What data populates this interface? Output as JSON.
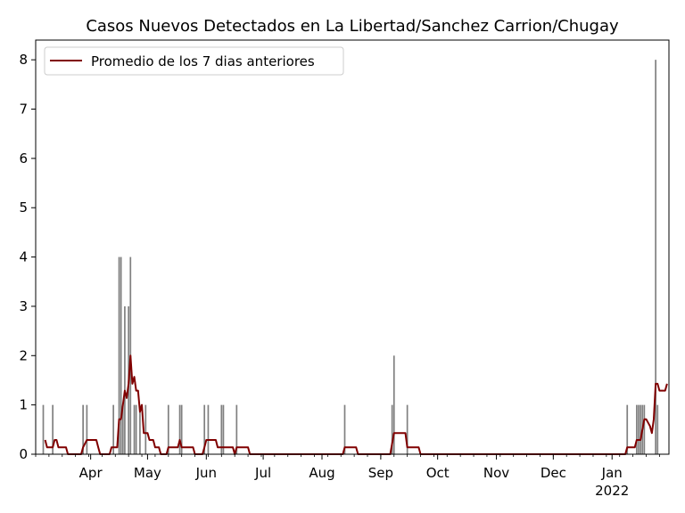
{
  "chart_data": {
    "type": "bar+line",
    "title": "Casos Nuevos Detectados en La Libertad/Sanchez Carrion/Chugay",
    "xlabel": "",
    "ylabel": "",
    "x_range": [
      "2021-03-03",
      "2022-01-31"
    ],
    "ylim": [
      0,
      8.4
    ],
    "y_ticks": [
      0,
      1,
      2,
      3,
      4,
      5,
      6,
      7,
      8
    ],
    "x_ticks": [
      {
        "date": "2021-04-01",
        "label": "Apr"
      },
      {
        "date": "2021-05-01",
        "label": "May"
      },
      {
        "date": "2021-06-01",
        "label": "Jun"
      },
      {
        "date": "2021-07-01",
        "label": "Jul"
      },
      {
        "date": "2021-08-01",
        "label": "Aug"
      },
      {
        "date": "2021-09-01",
        "label": "Sep"
      },
      {
        "date": "2021-10-01",
        "label": "Oct"
      },
      {
        "date": "2021-11-01",
        "label": "Nov"
      },
      {
        "date": "2021-12-01",
        "label": "Dec"
      },
      {
        "date": "2022-01-01",
        "label": "Jan",
        "sublabel": "2022"
      }
    ],
    "legend": {
      "placement": "upper-left",
      "entries": [
        "Promedio de los 7 dias anteriores"
      ]
    },
    "colors": {
      "bars": "#808080",
      "line": "#800000"
    },
    "series": [
      {
        "type": "bar",
        "values": [
          [
            "2021-03-07",
            1
          ],
          [
            "2021-03-12",
            1
          ],
          [
            "2021-03-28",
            1
          ],
          [
            "2021-03-30",
            1
          ],
          [
            "2021-04-13",
            1
          ],
          [
            "2021-04-16",
            4
          ],
          [
            "2021-04-17",
            4
          ],
          [
            "2021-04-18",
            1
          ],
          [
            "2021-04-19",
            3
          ],
          [
            "2021-04-21",
            3
          ],
          [
            "2021-04-22",
            4
          ],
          [
            "2021-04-24",
            1
          ],
          [
            "2021-04-25",
            1
          ],
          [
            "2021-04-27",
            1
          ],
          [
            "2021-04-30",
            1
          ],
          [
            "2021-05-12",
            1
          ],
          [
            "2021-05-18",
            1
          ],
          [
            "2021-05-19",
            1
          ],
          [
            "2021-05-31",
            1
          ],
          [
            "2021-06-02",
            1
          ],
          [
            "2021-06-09",
            1
          ],
          [
            "2021-06-10",
            1
          ],
          [
            "2021-06-17",
            1
          ],
          [
            "2021-08-13",
            1
          ],
          [
            "2021-09-07",
            1
          ],
          [
            "2021-09-08",
            2
          ],
          [
            "2021-09-15",
            1
          ],
          [
            "2022-01-09",
            1
          ],
          [
            "2022-01-14",
            1
          ],
          [
            "2022-01-15",
            1
          ],
          [
            "2022-01-16",
            1
          ],
          [
            "2022-01-17",
            1
          ],
          [
            "2022-01-18",
            1
          ],
          [
            "2022-01-24",
            8
          ],
          [
            "2022-01-25",
            1
          ]
        ]
      },
      {
        "type": "line",
        "name": "Promedio de los 7 dias anteriores",
        "values": [
          [
            "2021-03-08",
            0.29
          ],
          [
            "2021-03-09",
            0.14
          ],
          [
            "2021-03-12",
            0.14
          ],
          [
            "2021-03-13",
            0.29
          ],
          [
            "2021-03-14",
            0.29
          ],
          [
            "2021-03-15",
            0.14
          ],
          [
            "2021-03-19",
            0.14
          ],
          [
            "2021-03-20",
            0
          ],
          [
            "2021-03-27",
            0
          ],
          [
            "2021-03-28",
            0.14
          ],
          [
            "2021-03-30",
            0.29
          ],
          [
            "2021-04-04",
            0.29
          ],
          [
            "2021-04-05",
            0.14
          ],
          [
            "2021-04-06",
            0
          ],
          [
            "2021-04-11",
            0
          ],
          [
            "2021-04-12",
            0.14
          ],
          [
            "2021-04-15",
            0.14
          ],
          [
            "2021-04-16",
            0.71
          ],
          [
            "2021-04-17",
            0.71
          ],
          [
            "2021-04-18",
            1.0
          ],
          [
            "2021-04-19",
            1.29
          ],
          [
            "2021-04-20",
            1.14
          ],
          [
            "2021-04-21",
            1.43
          ],
          [
            "2021-04-22",
            2.0
          ],
          [
            "2021-04-23",
            1.43
          ],
          [
            "2021-04-24",
            1.57
          ],
          [
            "2021-04-25",
            1.29
          ],
          [
            "2021-04-26",
            1.29
          ],
          [
            "2021-04-27",
            0.86
          ],
          [
            "2021-04-28",
            1.0
          ],
          [
            "2021-04-29",
            0.43
          ],
          [
            "2021-05-01",
            0.43
          ],
          [
            "2021-05-02",
            0.29
          ],
          [
            "2021-05-04",
            0.29
          ],
          [
            "2021-05-05",
            0.14
          ],
          [
            "2021-05-07",
            0.14
          ],
          [
            "2021-05-08",
            0
          ],
          [
            "2021-05-11",
            0
          ],
          [
            "2021-05-12",
            0.14
          ],
          [
            "2021-05-17",
            0.14
          ],
          [
            "2021-05-18",
            0.29
          ],
          [
            "2021-05-19",
            0.14
          ],
          [
            "2021-05-25",
            0.14
          ],
          [
            "2021-05-26",
            0
          ],
          [
            "2021-05-30",
            0
          ],
          [
            "2021-05-31",
            0.14
          ],
          [
            "2021-06-01",
            0.29
          ],
          [
            "2021-06-06",
            0.29
          ],
          [
            "2021-06-07",
            0.14
          ],
          [
            "2021-06-15",
            0.14
          ],
          [
            "2021-06-16",
            0
          ],
          [
            "2021-06-17",
            0.14
          ],
          [
            "2021-06-23",
            0.14
          ],
          [
            "2021-06-24",
            0
          ],
          [
            "2021-08-12",
            0
          ],
          [
            "2021-08-13",
            0.14
          ],
          [
            "2021-08-19",
            0.14
          ],
          [
            "2021-08-20",
            0
          ],
          [
            "2021-09-06",
            0
          ],
          [
            "2021-09-08",
            0.43
          ],
          [
            "2021-09-14",
            0.43
          ],
          [
            "2021-09-15",
            0.14
          ],
          [
            "2021-09-21",
            0.14
          ],
          [
            "2021-09-22",
            0
          ],
          [
            "2022-01-08",
            0
          ],
          [
            "2022-01-09",
            0.14
          ],
          [
            "2022-01-13",
            0.14
          ],
          [
            "2022-01-14",
            0.29
          ],
          [
            "2022-01-16",
            0.29
          ],
          [
            "2022-01-18",
            0.71
          ],
          [
            "2022-01-19",
            0.71
          ],
          [
            "2022-01-21",
            0.57
          ],
          [
            "2022-01-22",
            0.43
          ],
          [
            "2022-01-23",
            0.71
          ],
          [
            "2022-01-24",
            1.43
          ],
          [
            "2022-01-25",
            1.43
          ],
          [
            "2022-01-26",
            1.29
          ],
          [
            "2022-01-29",
            1.29
          ],
          [
            "2022-01-30",
            1.43
          ]
        ]
      }
    ]
  }
}
